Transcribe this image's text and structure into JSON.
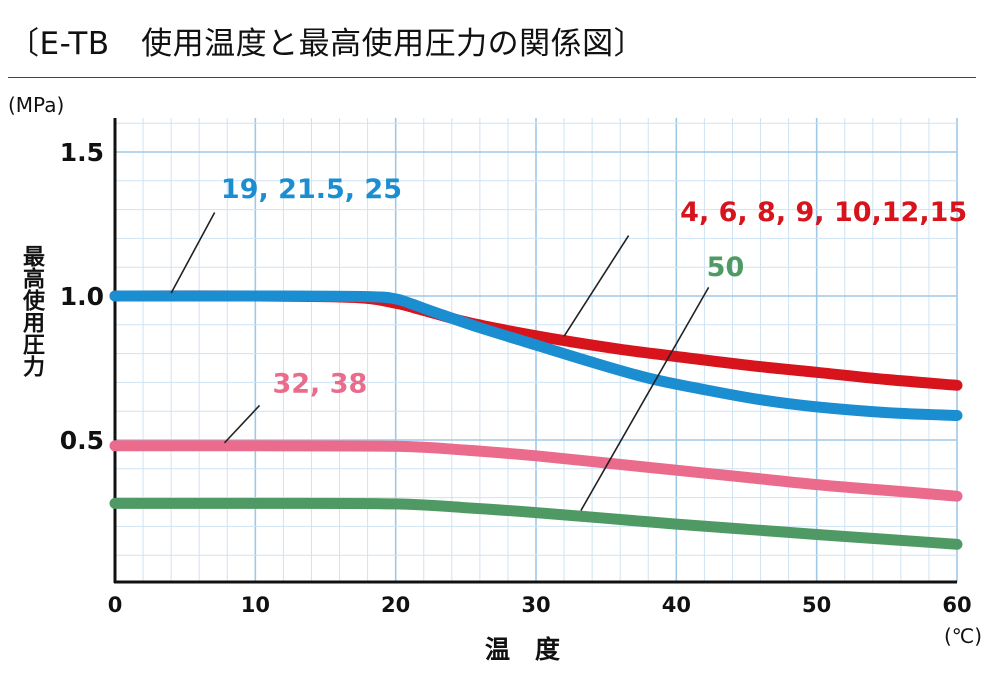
{
  "title": "〔E-TB　使用温度と最高使用圧力の関係図〕",
  "chart_data": {
    "type": "line",
    "xlabel": "温　度",
    "ylabel": "最高使用圧力",
    "x_unit": "(℃)",
    "y_unit": "(MPa)",
    "xlim": [
      0,
      60
    ],
    "ylim": [
      0,
      1.6
    ],
    "x_ticks": [
      "0",
      "10",
      "20",
      "30",
      "40",
      "50",
      "60"
    ],
    "y_ticks": [
      "0.5",
      "1.0",
      "1.5"
    ],
    "grid": true,
    "series": [
      {
        "name": "4, 6, 8, 9, 10,12,15",
        "color": "#d7141c",
        "points": [
          [
            0,
            1.0
          ],
          [
            10,
            1.0
          ],
          [
            17,
            0.995
          ],
          [
            20,
            0.975
          ],
          [
            22,
            0.95
          ],
          [
            25,
            0.91
          ],
          [
            28,
            0.88
          ],
          [
            32,
            0.845
          ],
          [
            36,
            0.815
          ],
          [
            40,
            0.79
          ],
          [
            45,
            0.76
          ],
          [
            50,
            0.735
          ],
          [
            55,
            0.71
          ],
          [
            60,
            0.69
          ]
        ]
      },
      {
        "name": "19, 21.5, 25",
        "color": "#1a8ed1",
        "points": [
          [
            0,
            1.0
          ],
          [
            10,
            1.0
          ],
          [
            18,
            0.998
          ],
          [
            20,
            0.99
          ],
          [
            21,
            0.975
          ],
          [
            23,
            0.94
          ],
          [
            26,
            0.89
          ],
          [
            30,
            0.83
          ],
          [
            34,
            0.77
          ],
          [
            38,
            0.715
          ],
          [
            42,
            0.675
          ],
          [
            46,
            0.64
          ],
          [
            50,
            0.615
          ],
          [
            55,
            0.595
          ],
          [
            60,
            0.585
          ]
        ]
      },
      {
        "name": "32, 38",
        "color": "#ea6b8c",
        "points": [
          [
            0,
            0.48
          ],
          [
            10,
            0.48
          ],
          [
            20,
            0.478
          ],
          [
            25,
            0.465
          ],
          [
            30,
            0.445
          ],
          [
            35,
            0.42
          ],
          [
            40,
            0.395
          ],
          [
            45,
            0.37
          ],
          [
            50,
            0.345
          ],
          [
            55,
            0.325
          ],
          [
            60,
            0.305
          ]
        ]
      },
      {
        "name": "50",
        "color": "#4f9a64",
        "points": [
          [
            0,
            0.28
          ],
          [
            10,
            0.28
          ],
          [
            20,
            0.278
          ],
          [
            25,
            0.265
          ],
          [
            30,
            0.248
          ],
          [
            35,
            0.228
          ],
          [
            40,
            0.208
          ],
          [
            45,
            0.19
          ],
          [
            50,
            0.172
          ],
          [
            55,
            0.155
          ],
          [
            60,
            0.138
          ]
        ]
      }
    ],
    "annotations": [
      {
        "text": "19, 21.5, 25",
        "color": "#1a8ed1",
        "label_pos": [
          14,
          1.34
        ],
        "line_from": [
          7.1,
          1.29
        ],
        "line_to": [
          4.0,
          1.01
        ]
      },
      {
        "text": "4, 6, 8, 9, 10,12,15",
        "color": "#d7141c",
        "label_pos": [
          50.5,
          1.26
        ],
        "line_from": [
          36.6,
          1.21
        ],
        "line_to": [
          32.0,
          0.86
        ]
      },
      {
        "text": "32, 38",
        "color": "#ea6b8c",
        "label_pos": [
          14.6,
          0.665
        ],
        "line_from": [
          10.3,
          0.62
        ],
        "line_to": [
          7.8,
          0.49
        ]
      },
      {
        "text": "50",
        "color": "#4f9a64",
        "label_pos": [
          43.5,
          1.07
        ],
        "line_from": [
          42.3,
          1.03
        ],
        "line_to": [
          33.2,
          0.255
        ]
      }
    ]
  }
}
